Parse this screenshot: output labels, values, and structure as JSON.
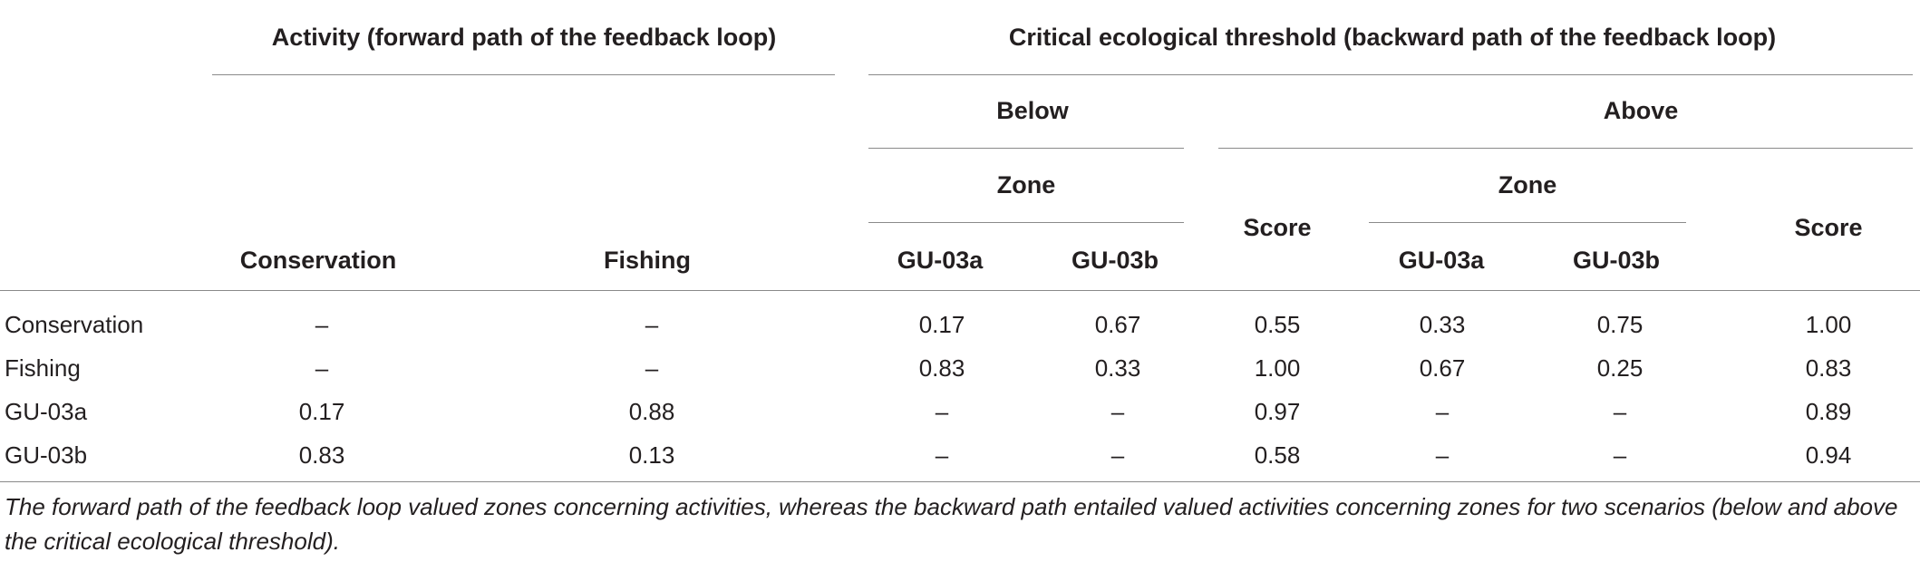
{
  "header": {
    "activity_group": "Activity (forward path of the feedback loop)",
    "threshold_group": "Critical ecological threshold (backward path of the feedback loop)",
    "below": "Below",
    "above": "Above",
    "zone_below": "Zone",
    "zone_above": "Zone",
    "score_below": "Score",
    "score_above": "Score",
    "conservation": "Conservation",
    "fishing": "Fishing",
    "gu03a_below": "GU-03a",
    "gu03b_below": "GU-03b",
    "gu03a_above": "GU-03a",
    "gu03b_above": "GU-03b"
  },
  "rows": [
    {
      "label": "Conservation",
      "cells": [
        "–",
        "–",
        "0.17",
        "0.67",
        "0.55",
        "0.33",
        "0.75",
        "1.00"
      ]
    },
    {
      "label": "Fishing",
      "cells": [
        "–",
        "–",
        "0.83",
        "0.33",
        "1.00",
        "0.67",
        "0.25",
        "0.83"
      ]
    },
    {
      "label": "GU-03a",
      "cells": [
        "0.17",
        "0.88",
        "–",
        "–",
        "0.97",
        "–",
        "–",
        "0.89"
      ]
    },
    {
      "label": "GU-03b",
      "cells": [
        "0.83",
        "0.13",
        "–",
        "–",
        "0.58",
        "–",
        "–",
        "0.94"
      ]
    }
  ],
  "caption": "The forward path of the feedback loop valued zones concerning activities, whereas the backward path entailed valued activities concerning zones for two scenarios (below and above the critical ecological threshold)."
}
